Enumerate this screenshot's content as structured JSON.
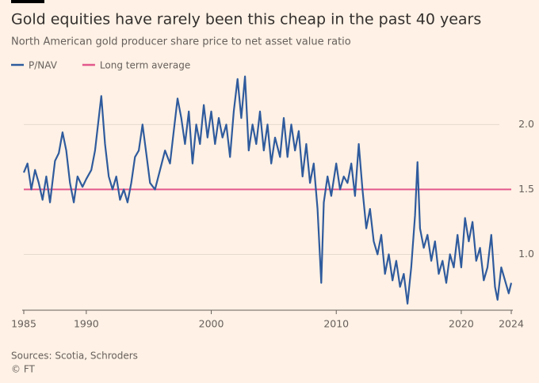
{
  "chart_data": {
    "type": "line",
    "title": "Gold equities have rarely been this cheap in the past 40 years",
    "subtitle": "North American gold producer share price to net asset value ratio",
    "series": [
      {
        "name": "P/NAV",
        "color": "#2f5b9d",
        "x": [
          1985.0,
          1985.3,
          1985.6,
          1985.9,
          1986.2,
          1986.5,
          1986.8,
          1987.1,
          1987.5,
          1987.8,
          1988.1,
          1988.4,
          1988.7,
          1989.0,
          1989.3,
          1989.7,
          1990.0,
          1990.4,
          1990.7,
          1991.0,
          1991.2,
          1991.5,
          1991.8,
          1992.1,
          1992.4,
          1992.7,
          1993.0,
          1993.3,
          1993.6,
          1993.9,
          1994.2,
          1994.5,
          1994.8,
          1995.1,
          1995.5,
          1995.9,
          1996.3,
          1996.7,
          1997.0,
          1997.3,
          1997.6,
          1997.9,
          1998.2,
          1998.5,
          1998.8,
          1999.1,
          1999.4,
          1999.7,
          2000.0,
          2000.3,
          2000.6,
          2000.9,
          2001.2,
          2001.5,
          2001.8,
          2002.1,
          2002.4,
          2002.7,
          2003.0,
          2003.3,
          2003.6,
          2003.9,
          2004.2,
          2004.5,
          2004.8,
          2005.1,
          2005.5,
          2005.8,
          2006.1,
          2006.4,
          2006.7,
          2007.0,
          2007.3,
          2007.6,
          2007.9,
          2008.2,
          2008.5,
          2008.8,
          2009.0,
          2009.3,
          2009.6,
          2010.0,
          2010.3,
          2010.6,
          2010.9,
          2011.2,
          2011.5,
          2011.8,
          2012.1,
          2012.4,
          2012.7,
          2013.0,
          2013.3,
          2013.6,
          2013.9,
          2014.2,
          2014.5,
          2014.8,
          2015.1,
          2015.4,
          2015.7,
          2016.0,
          2016.3,
          2016.5,
          2016.7,
          2017.0,
          2017.3,
          2017.6,
          2017.9,
          2018.2,
          2018.5,
          2018.8,
          2019.1,
          2019.4,
          2019.7,
          2020.0,
          2020.3,
          2020.6,
          2020.9,
          2021.2,
          2021.5,
          2021.8,
          2022.1,
          2022.4,
          2022.7,
          2022.9,
          2023.2,
          2023.5,
          2023.8,
          2024.0
        ],
        "values": [
          1.63,
          1.7,
          1.5,
          1.65,
          1.55,
          1.42,
          1.6,
          1.4,
          1.72,
          1.78,
          1.94,
          1.8,
          1.55,
          1.4,
          1.6,
          1.52,
          1.58,
          1.65,
          1.8,
          2.05,
          2.22,
          1.85,
          1.6,
          1.5,
          1.6,
          1.42,
          1.5,
          1.4,
          1.55,
          1.75,
          1.8,
          2.0,
          1.78,
          1.55,
          1.5,
          1.65,
          1.8,
          1.7,
          1.95,
          2.2,
          2.05,
          1.85,
          2.1,
          1.7,
          2.0,
          1.85,
          2.15,
          1.9,
          2.1,
          1.85,
          2.05,
          1.9,
          2.0,
          1.75,
          2.1,
          2.35,
          2.05,
          2.37,
          1.8,
          2.0,
          1.85,
          2.1,
          1.8,
          2.0,
          1.7,
          1.9,
          1.75,
          2.05,
          1.75,
          2.0,
          1.8,
          1.95,
          1.6,
          1.85,
          1.55,
          1.7,
          1.35,
          0.78,
          1.4,
          1.6,
          1.45,
          1.7,
          1.5,
          1.6,
          1.55,
          1.7,
          1.45,
          1.85,
          1.5,
          1.2,
          1.35,
          1.1,
          1.0,
          1.15,
          0.85,
          1.0,
          0.8,
          0.95,
          0.75,
          0.85,
          0.62,
          0.9,
          1.3,
          1.71,
          1.2,
          1.05,
          1.15,
          0.95,
          1.1,
          0.85,
          0.95,
          0.78,
          1.0,
          0.9,
          1.15,
          0.9,
          1.28,
          1.1,
          1.25,
          0.95,
          1.05,
          0.8,
          0.9,
          1.15,
          0.75,
          0.65,
          0.9,
          0.8,
          0.7,
          0.78
        ]
      },
      {
        "name": "Long term average",
        "color": "#e2588c",
        "x": [
          1985,
          2024
        ],
        "values": [
          1.5,
          1.5
        ]
      }
    ],
    "xlim": [
      1985,
      2024
    ],
    "xticks": [
      1985,
      1990,
      2000,
      2010,
      2020,
      2024
    ],
    "ylim": [
      0.57,
      2.38
    ],
    "yticks": [
      {
        "value": 1,
        "label": "1.0"
      },
      1.5,
      {
        "value": 2,
        "label": "2.0"
      }
    ],
    "grid": true,
    "source": "Sources: Scotia, Schroders",
    "credit": "© FT"
  }
}
